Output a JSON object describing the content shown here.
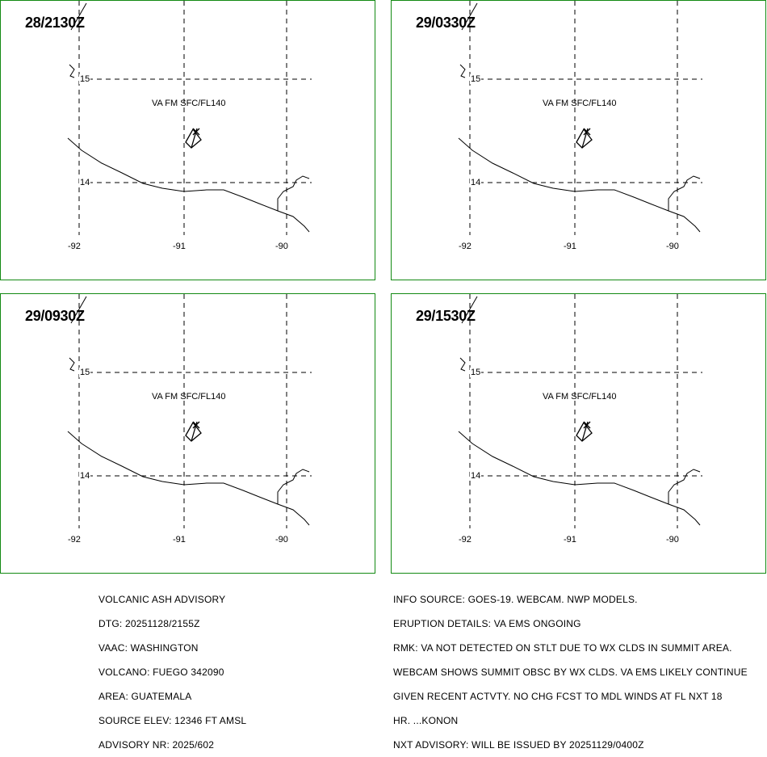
{
  "panels": [
    {
      "time": "28/2130Z"
    },
    {
      "time": "29/0330Z"
    },
    {
      "time": "29/0930Z"
    },
    {
      "time": "29/1530Z"
    }
  ],
  "map": {
    "lat_labels": [
      "15",
      "14"
    ],
    "lon_labels": [
      "-92",
      "-91",
      "-90"
    ],
    "ash_label": "VA FM SFC/FL140",
    "line_color": "#000000",
    "border_color": "#138a13"
  },
  "advisory_left": [
    "VOLCANIC ASH ADVISORY",
    "DTG: 20251128/2155Z",
    "VAAC: WASHINGTON",
    "VOLCANO: FUEGO 342090",
    "AREA: GUATEMALA",
    "SOURCE ELEV: 12346 FT AMSL",
    "ADVISORY NR: 2025/602"
  ],
  "advisory_right": [
    "INFO SOURCE: GOES-19. WEBCAM. NWP MODELS.",
    "ERUPTION DETAILS: VA EMS ONGOING",
    "RMK: VA NOT DETECTED ON STLT DUE TO WX CLDS IN SUMMIT AREA.",
    "WEBCAM SHOWS SUMMIT OBSC BY WX CLDS. VA EMS LIKELY CONTINUE",
    "GIVEN RECENT ACTVTY. NO CHG FCST TO MDL WINDS AT FL NXT 18",
    "HR. ...KONON",
    "NXT ADVISORY: WILL BE ISSUED BY 20251129/0400Z"
  ]
}
